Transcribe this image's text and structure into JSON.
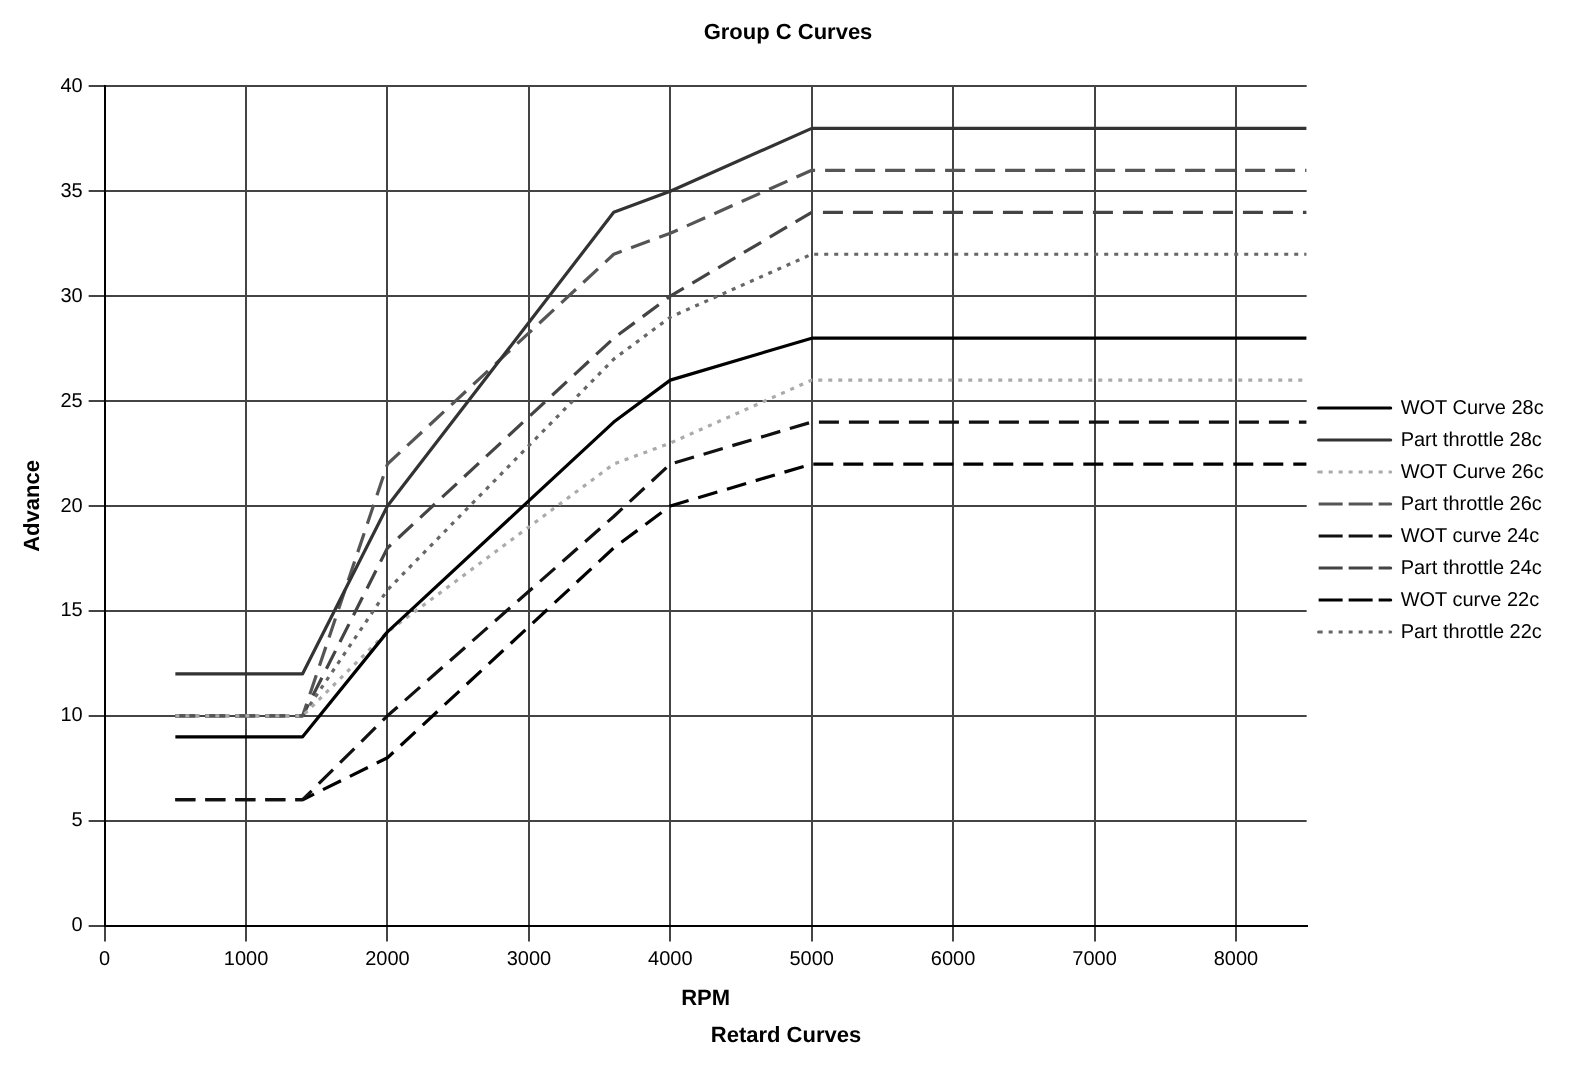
{
  "chart_data": {
    "type": "line",
    "title": "Group C Curves",
    "xlabel": "RPM",
    "ylabel": "Advance",
    "annotations": [
      "Retard Curves"
    ],
    "x": [
      500,
      1400,
      2000,
      3600,
      4000,
      5000,
      8500
    ],
    "xlim": [
      0,
      8500
    ],
    "xticks": [
      0,
      1000,
      2000,
      3000,
      4000,
      5000,
      6000,
      7000,
      8000
    ],
    "ylim": [
      0,
      40
    ],
    "yticks": [
      0,
      5,
      10,
      15,
      20,
      25,
      30,
      35,
      40
    ],
    "grid": true,
    "legend": "right",
    "marker": "none",
    "series": [
      {
        "name": "WOT Curve 28c",
        "color": "#000000",
        "line_style": "solid",
        "values": [
          9,
          9,
          14,
          24,
          26,
          28,
          28
        ]
      },
      {
        "name": "Part throttle 28c",
        "color": "#333333",
        "line_style": "solid",
        "values": [
          12,
          12,
          20,
          34,
          35,
          38,
          38
        ]
      },
      {
        "name": "WOT Curve 26c",
        "color": "#aaaaaa",
        "line_style": "dotted",
        "values": [
          10,
          10,
          14,
          22,
          23,
          26,
          26
        ]
      },
      {
        "name": "Part throttle 26c",
        "color": "#555555",
        "line_style": "dashed",
        "values": [
          10,
          10,
          22,
          32,
          33,
          36,
          36
        ]
      },
      {
        "name": "WOT curve 24c",
        "color": "#111111",
        "line_style": "dashed",
        "values": [
          6,
          6,
          10,
          19.5,
          22,
          24,
          24
        ]
      },
      {
        "name": "Part throttle 24c",
        "color": "#444444",
        "line_style": "dashed",
        "values": [
          10,
          10,
          18,
          28,
          30,
          34,
          34
        ]
      },
      {
        "name": "WOT curve 22c",
        "color": "#000000",
        "line_style": "dashed",
        "values": [
          6,
          6,
          8,
          18,
          20,
          22,
          22
        ]
      },
      {
        "name": "Part throttle 22c",
        "color": "#666666",
        "line_style": "dotted",
        "values": [
          10,
          10,
          16,
          27,
          29,
          32,
          32
        ]
      }
    ]
  }
}
